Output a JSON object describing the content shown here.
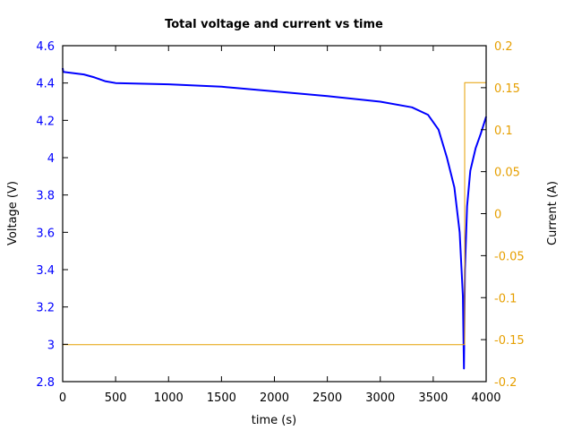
{
  "chart_data": {
    "type": "line",
    "title": "Total voltage and current vs time",
    "xlabel": "time (s)",
    "ylabel": "Voltage (V)",
    "y2label": "Current (A)",
    "xlim": [
      0,
      4000
    ],
    "ylim": [
      2.8,
      4.6
    ],
    "y2lim": [
      -0.2,
      0.2
    ],
    "xticks": [
      0,
      500,
      1000,
      1500,
      2000,
      2500,
      3000,
      3500,
      4000
    ],
    "yticks": [
      2.8,
      3,
      3.2,
      3.4,
      3.6,
      3.8,
      4,
      4.2,
      4.4,
      4.6
    ],
    "yticklabels": [
      "2.8",
      "3",
      "3.2",
      "3.4",
      "3.6",
      "3.8",
      "4",
      "4.2",
      "4.4",
      "4.6"
    ],
    "y2ticks": [
      -0.2,
      -0.15,
      -0.1,
      -0.05,
      0,
      0.05,
      0.1,
      0.15,
      0.2
    ],
    "y2ticklabels": [
      "-0.2",
      "-0.15",
      "-0.1",
      "-0.05",
      "0",
      "0.05",
      "0.1",
      "0.15",
      "0.2"
    ],
    "grid": false,
    "legend": null,
    "series": [
      {
        "name": "Voltage",
        "axis": "left",
        "color": "#0000ff",
        "x": [
          0,
          5,
          200,
          300,
          400,
          500,
          1000,
          1500,
          2000,
          2500,
          3000,
          3300,
          3450,
          3550,
          3630,
          3700,
          3750,
          3780,
          3790,
          3800,
          3820,
          3850,
          3900,
          3950,
          4000
        ],
        "values": [
          4.48,
          4.46,
          4.446,
          4.43,
          4.41,
          4.4,
          4.393,
          4.38,
          4.355,
          4.33,
          4.3,
          4.27,
          4.23,
          4.15,
          4.0,
          3.84,
          3.6,
          3.26,
          2.87,
          3.4,
          3.74,
          3.93,
          4.05,
          4.13,
          4.22
        ]
      },
      {
        "name": "Current",
        "axis": "right",
        "color": "#e69f00",
        "x": [
          0,
          3797,
          3797,
          4000
        ],
        "values": [
          -0.156,
          -0.156,
          0.156,
          0.156
        ]
      }
    ]
  },
  "colors": {
    "voltage": "#0000ff",
    "current": "#e69f00",
    "axis": "#000000"
  }
}
